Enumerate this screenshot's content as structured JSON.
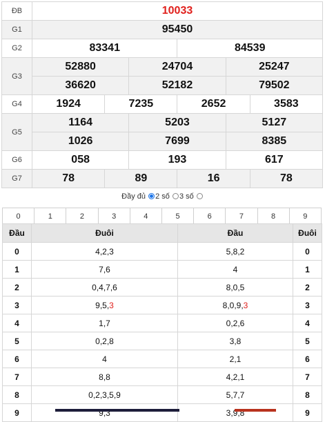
{
  "prizes": {
    "db": {
      "label": "ĐB",
      "values": [
        "10033"
      ]
    },
    "g1": {
      "label": "G1",
      "values": [
        "95450"
      ]
    },
    "g2": {
      "label": "G2",
      "values": [
        "83341",
        "84539"
      ]
    },
    "g3": {
      "label": "G3",
      "values": [
        "52880",
        "24704",
        "25247",
        "36620",
        "52182",
        "79502"
      ]
    },
    "g4": {
      "label": "G4",
      "values": [
        "1924",
        "7235",
        "2652",
        "3583"
      ]
    },
    "g5": {
      "label": "G5",
      "values": [
        "1164",
        "5203",
        "5127",
        "1026",
        "7699",
        "8385"
      ]
    },
    "g6": {
      "label": "G6",
      "values": [
        "058",
        "193",
        "617"
      ]
    },
    "g7": {
      "label": "G7",
      "values": [
        "78",
        "89",
        "16",
        "78"
      ]
    }
  },
  "options": {
    "full": "Đầy đủ",
    "two": "2 số",
    "three": "3 số",
    "selected": "2 số"
  },
  "digits": [
    "0",
    "1",
    "2",
    "3",
    "4",
    "5",
    "6",
    "7",
    "8",
    "9"
  ],
  "loto": {
    "headers": [
      "Đầu",
      "Đuôi",
      "Đầu",
      "Đuôi"
    ],
    "rows": [
      {
        "dau": "0",
        "duoi": "4,2,3",
        "dau2": "5,8,2",
        "duoi2": "0"
      },
      {
        "dau": "1",
        "duoi": "7,6",
        "dau2": "4",
        "duoi2": "1"
      },
      {
        "dau": "2",
        "duoi": "0,4,7,6",
        "dau2": "8,0,5",
        "duoi2": "2"
      },
      {
        "dau": "3",
        "duoi_pre": "9,5,",
        "duoi_hl": "3",
        "dau2_pre": "8,0,9,",
        "dau2_hl": "3",
        "duoi2": "3"
      },
      {
        "dau": "4",
        "duoi": "1,7",
        "dau2": "0,2,6",
        "duoi2": "4"
      },
      {
        "dau": "5",
        "duoi": "0,2,8",
        "dau2": "3,8",
        "duoi2": "5"
      },
      {
        "dau": "6",
        "duoi": "4",
        "dau2": "2,1",
        "duoi2": "6"
      },
      {
        "dau": "7",
        "duoi": "8,8",
        "dau2": "4,2,1",
        "duoi2": "7"
      },
      {
        "dau": "8",
        "duoi": "0,2,3,5,9",
        "dau2": "5,7,7",
        "duoi2": "8"
      },
      {
        "dau": "9",
        "duoi": "9,3",
        "dau2": "3,9,8",
        "duoi2": "9"
      }
    ]
  },
  "colors": {
    "special": "#e0201c",
    "highlight": "#e0201c",
    "radio_on": "#1a73e8"
  }
}
